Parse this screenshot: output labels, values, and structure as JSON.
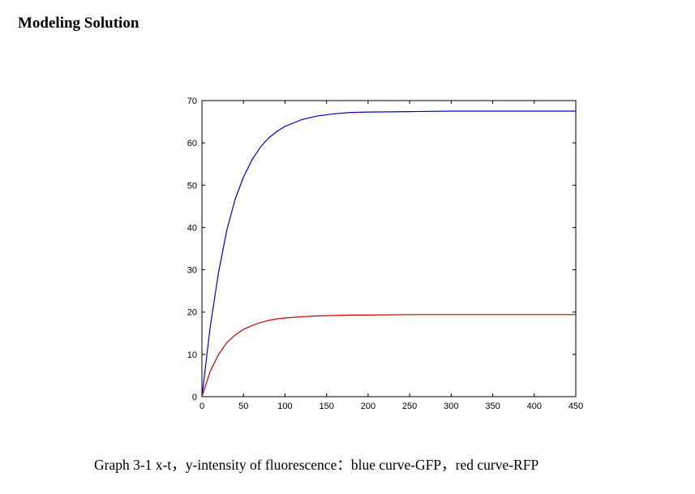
{
  "heading": "Modeling Solution",
  "caption": "Graph 3-1 x-t，y-intensity of fluorescence：blue curve-GFP，red curve-RFP",
  "chart_data": {
    "type": "line",
    "title": "",
    "xlabel": "",
    "ylabel": "",
    "xlim": [
      0,
      450
    ],
    "ylim": [
      0,
      70
    ],
    "grid": false,
    "x_ticks": [
      0,
      50,
      100,
      150,
      200,
      250,
      300,
      350,
      400,
      450
    ],
    "y_ticks": [
      0,
      10,
      20,
      30,
      40,
      50,
      60,
      70
    ],
    "x": [
      0,
      10,
      20,
      30,
      40,
      50,
      60,
      70,
      80,
      90,
      100,
      120,
      140,
      160,
      180,
      200,
      250,
      300,
      350,
      400,
      450
    ],
    "series": [
      {
        "color": "#0000cc",
        "values": [
          0,
          16.5,
          29.4,
          39.4,
          46.7,
          51.9,
          55.9,
          58.9,
          61.1,
          62.7,
          63.9,
          65.5,
          66.4,
          66.9,
          67.2,
          67.3,
          67.4,
          67.5,
          67.5,
          67.5,
          67.5
        ]
      },
      {
        "color": "#cc0000",
        "values": [
          0,
          6.0,
          10.0,
          12.8,
          14.6,
          15.9,
          16.8,
          17.5,
          18.0,
          18.4,
          18.6,
          18.9,
          19.1,
          19.2,
          19.3,
          19.3,
          19.4,
          19.4,
          19.4,
          19.4,
          19.4
        ]
      }
    ]
  }
}
